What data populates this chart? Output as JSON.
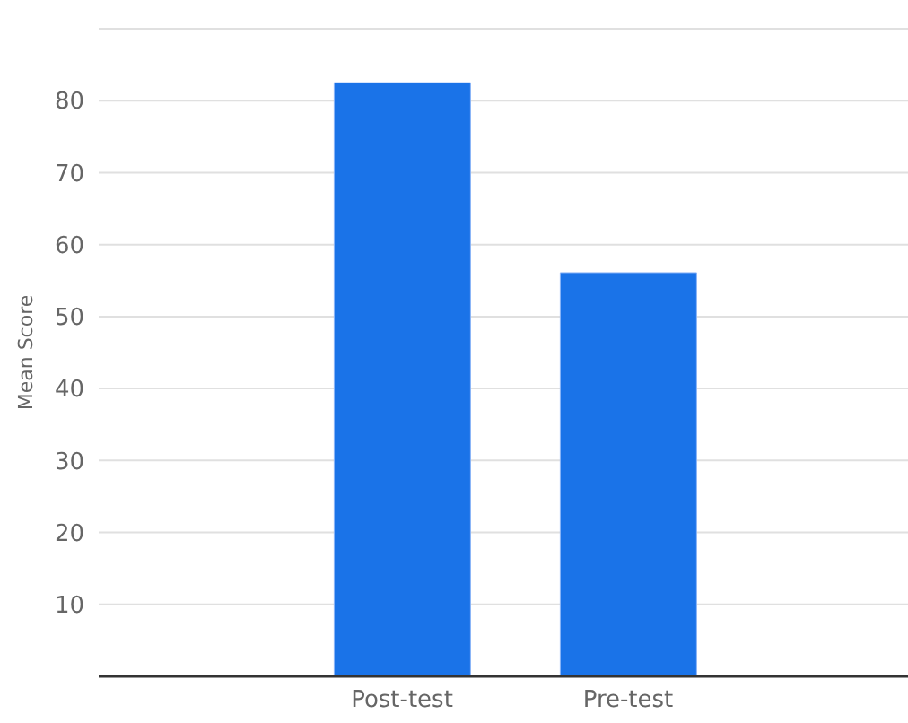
{
  "chart_data": {
    "type": "bar",
    "ylabel": "Mean Score",
    "categories": [
      "Post-test",
      "Pre-test"
    ],
    "values": [
      82.5,
      56.1
    ],
    "color": "#1a73e8",
    "ylim": [
      0,
      90
    ],
    "yticks": [
      {
        "value": 0,
        "label": null
      },
      10,
      20,
      30,
      40,
      50,
      60,
      70,
      80,
      {
        "value": 90,
        "label": null
      }
    ],
    "grid": "y"
  }
}
